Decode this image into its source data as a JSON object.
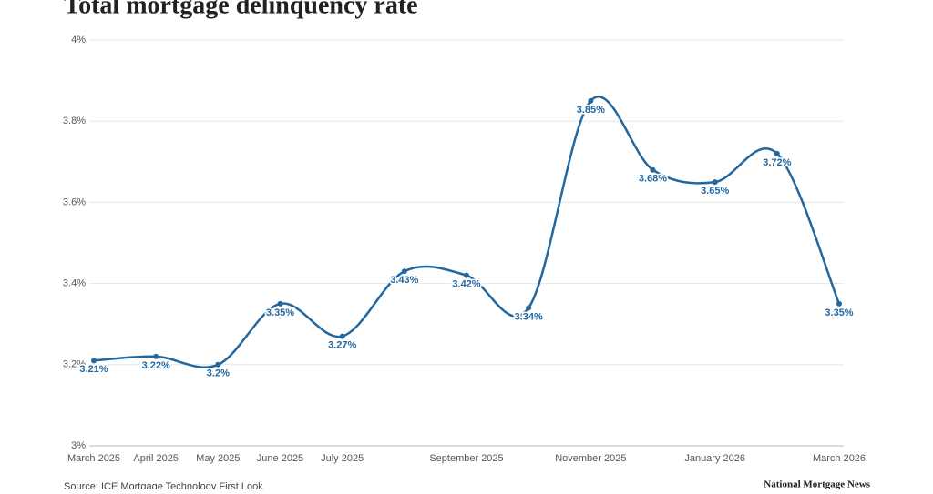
{
  "chart_data": {
    "type": "line",
    "title": "Total mortgage delinquency rate",
    "source": "Source: ICE Mortgage Technology First Look",
    "brand": "National Mortgage News",
    "categories": [
      "March 2025",
      "April 2025",
      "May 2025",
      "June 2025",
      "July 2025",
      null,
      "September 2025",
      null,
      "November 2025",
      null,
      "January 2026",
      null,
      "March 2026"
    ],
    "values": [
      3.21,
      3.22,
      3.2,
      3.35,
      3.27,
      3.43,
      3.42,
      3.34,
      3.85,
      3.68,
      3.65,
      3.72,
      3.35
    ],
    "value_labels": [
      "3.21%",
      "3.22%",
      "3.2%",
      "3.35%",
      "3.27%",
      "3.43%",
      "3.42%",
      "3.34%",
      "3.85%",
      "3.68%",
      "3.65%",
      "3.72%",
      "3.35%"
    ],
    "color": "#23679f",
    "ylim": [
      3,
      4
    ],
    "yticks": [
      {
        "value": 3,
        "label": "3%"
      },
      {
        "value": 3.2,
        "label": "3.2%"
      },
      {
        "value": 3.4,
        "label": "3.4%"
      },
      {
        "value": 3.6,
        "label": "3.6%"
      },
      {
        "value": 3.8,
        "label": "3.8%"
      },
      {
        "value": 4,
        "label": "4%"
      }
    ],
    "grid": true
  }
}
